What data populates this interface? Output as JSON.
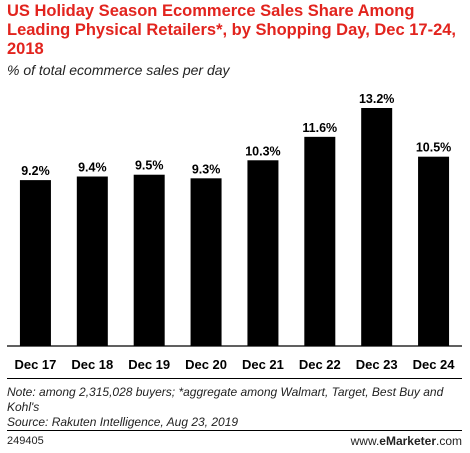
{
  "title": "US Holiday Season Ecommerce Sales Share Among Leading Physical Retailers*, by Shopping Day, Dec 17-24, 2018",
  "subtitle": "% of total ecommerce sales per day",
  "chart_data": {
    "type": "bar",
    "categories": [
      "Dec 17",
      "Dec 18",
      "Dec 19",
      "Dec 20",
      "Dec 21",
      "Dec 22",
      "Dec 23",
      "Dec 24"
    ],
    "values": [
      9.2,
      9.4,
      9.5,
      9.3,
      10.3,
      11.6,
      13.2,
      10.5
    ],
    "value_labels": [
      "9.2%",
      "9.4%",
      "9.5%",
      "9.3%",
      "10.3%",
      "11.6%",
      "13.2%",
      "10.5%"
    ],
    "ylim": [
      0,
      13.2
    ],
    "bar_color": "#000000",
    "grid": false,
    "legend": "none"
  },
  "notes": {
    "note": "Note: among 2,315,028 buyers; *aggregate among Walmart, Target, Best Buy and Kohl's",
    "source": "Source: Rakuten Intelligence, Aug 23, 2019"
  },
  "footer": {
    "chart_id": "249405",
    "brand_prefix": "www.",
    "brand_name": "eMarketer",
    "brand_suffix": ".com"
  },
  "colors": {
    "title": "#e2241e",
    "bars": "#000000"
  }
}
